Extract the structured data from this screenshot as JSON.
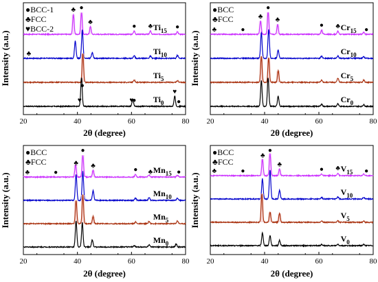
{
  "chart_data": [
    {
      "type": "line",
      "panel": "a",
      "ylabel": "Intensity (a.u.)",
      "xlabel": "2θ (degree)",
      "xlim": [
        20,
        80
      ],
      "xticks": [
        20,
        40,
        60,
        80
      ],
      "legend": [
        {
          "symbol": "●",
          "label": "BCC-1"
        },
        {
          "symbol": "♣",
          "label": "FCC"
        },
        {
          "symbol": "♥",
          "label": "BCC-2"
        }
      ],
      "series": [
        {
          "name": "Ti15",
          "base": "Ti",
          "sub": "15",
          "color": "#cc33ff",
          "peaks": [
            [
              38.5,
              0.9
            ],
            [
              41.5,
              1.0
            ],
            [
              44.8,
              0.35
            ],
            [
              61.0,
              0.15
            ],
            [
              67.0,
              0.15
            ],
            [
              77.0,
              0.12
            ]
          ],
          "markers": [
            [
              38.5,
              "♣"
            ],
            [
              41.5,
              "●"
            ],
            [
              44.8,
              "♣"
            ],
            [
              61.0,
              "●"
            ],
            [
              67.0,
              "♣"
            ],
            [
              77.0,
              "●"
            ]
          ]
        },
        {
          "name": "Ti10",
          "base": "Ti",
          "sub": "10",
          "color": "#0000cc",
          "peaks": [
            [
              39.2,
              0.6
            ],
            [
              41.8,
              1.0
            ],
            [
              45.5,
              0.2
            ],
            [
              61.0,
              0.1
            ],
            [
              67.0,
              0.08
            ],
            [
              77.0,
              0.1
            ]
          ],
          "markers": [
            [
              22,
              "♣"
            ]
          ]
        },
        {
          "name": "Ti5",
          "base": "Ti",
          "sub": "5",
          "color": "#aa3311",
          "peaks": [
            [
              42.0,
              1.0
            ],
            [
              61.0,
              0.08
            ],
            [
              77.0,
              0.06
            ]
          ],
          "markers": []
        },
        {
          "name": "Ti0",
          "base": "Ti",
          "sub": "0",
          "color": "#000000",
          "peaks": [
            [
              41.5,
              1.0
            ],
            [
              60.5,
              0.25
            ],
            [
              76.0,
              0.35
            ]
          ],
          "markers": [
            [
              40.8,
              "♥"
            ],
            [
              41.8,
              "●"
            ],
            [
              60.0,
              "♥"
            ],
            [
              61.0,
              "●"
            ],
            [
              76.0,
              "♥"
            ],
            [
              77.5,
              "●"
            ]
          ]
        }
      ]
    },
    {
      "type": "line",
      "panel": "b",
      "ylabel": "Intensity (a.u.)",
      "xlabel": "2θ (degree)",
      "xlim": [
        20,
        80
      ],
      "xticks": [
        20,
        40,
        60,
        80
      ],
      "legend": [
        {
          "symbol": "●",
          "label": "BCC"
        },
        {
          "symbol": "♣",
          "label": "FCC"
        }
      ],
      "series": [
        {
          "name": "Cr15",
          "base": "Cr",
          "sub": "15",
          "color": "#cc33ff",
          "peaks": [
            [
              38.5,
              0.6
            ],
            [
              41.3,
              1.0
            ],
            [
              44.8,
              0.45
            ],
            [
              61.0,
              0.2
            ],
            [
              67.0,
              0.15
            ],
            [
              76.5,
              0.1
            ]
          ],
          "markers": [
            [
              21.5,
              "♣"
            ],
            [
              32.0,
              "●"
            ],
            [
              38.5,
              "♣"
            ],
            [
              41.3,
              "●"
            ],
            [
              44.8,
              "♣"
            ],
            [
              61.0,
              "●"
            ],
            [
              67.0,
              "♣"
            ],
            [
              77.5,
              "●"
            ]
          ]
        },
        {
          "name": "Cr10",
          "base": "Cr",
          "sub": "10",
          "color": "#0000cc",
          "peaks": [
            [
              38.8,
              0.9
            ],
            [
              41.5,
              1.0
            ],
            [
              45.0,
              0.3
            ],
            [
              61.0,
              0.08
            ],
            [
              67.0,
              0.08
            ],
            [
              76.5,
              0.06
            ]
          ],
          "markers": []
        },
        {
          "name": "Cr5",
          "base": "Cr",
          "sub": "5",
          "color": "#aa3311",
          "peaks": [
            [
              38.8,
              0.9
            ],
            [
              41.5,
              0.85
            ],
            [
              45.0,
              0.4
            ],
            [
              61.0,
              0.08
            ],
            [
              67.0,
              0.15
            ],
            [
              76.5,
              0.08
            ]
          ],
          "markers": []
        },
        {
          "name": "Cr0",
          "base": "Cr",
          "sub": "0",
          "color": "#000000",
          "peaks": [
            [
              38.8,
              0.9
            ],
            [
              41.3,
              1.0
            ],
            [
              45.0,
              0.35
            ],
            [
              61.0,
              0.08
            ],
            [
              67.0,
              0.1
            ],
            [
              76.5,
              0.06
            ]
          ],
          "markers": []
        }
      ]
    },
    {
      "type": "line",
      "panel": "c",
      "ylabel": "Intensity (a.u.)",
      "xlabel": "2θ (degree)",
      "xlim": [
        20,
        80
      ],
      "xticks": [
        20,
        40,
        60,
        80
      ],
      "legend": [
        {
          "symbol": "●",
          "label": "BCC"
        },
        {
          "symbol": "♣",
          "label": "FCC"
        }
      ],
      "series": [
        {
          "name": "Mn15",
          "base": "Mn",
          "sub": "15",
          "color": "#cc33ff",
          "peaks": [
            [
              39.3,
              0.55
            ],
            [
              42.0,
              1.0
            ],
            [
              45.8,
              0.3
            ],
            [
              61.5,
              0.12
            ],
            [
              66.5,
              0.1
            ],
            [
              77.0,
              0.08
            ]
          ],
          "markers": [
            [
              21.5,
              "♣"
            ],
            [
              32.0,
              "●"
            ],
            [
              39.5,
              "♣"
            ],
            [
              42.0,
              "●"
            ],
            [
              45.8,
              "♣"
            ],
            [
              61.5,
              "●"
            ],
            [
              67.0,
              "♣"
            ],
            [
              77.5,
              "●"
            ]
          ]
        },
        {
          "name": "Mn10",
          "base": "Mn",
          "sub": "10",
          "color": "#0000cc",
          "peaks": [
            [
              39.5,
              0.9
            ],
            [
              42.0,
              1.0
            ],
            [
              45.8,
              0.35
            ],
            [
              61.5,
              0.08
            ],
            [
              66.5,
              0.1
            ],
            [
              77.0,
              0.08
            ]
          ],
          "markers": []
        },
        {
          "name": "Mn5",
          "base": "Mn",
          "sub": "5",
          "color": "#aa3311",
          "peaks": [
            [
              39.5,
              0.8
            ],
            [
              42.0,
              1.0
            ],
            [
              45.8,
              0.25
            ],
            [
              61.5,
              0.06
            ],
            [
              66.5,
              0.08
            ],
            [
              77.0,
              0.1
            ]
          ],
          "markers": []
        },
        {
          "name": "Mn0",
          "base": "Mn",
          "sub": "0",
          "color": "#000000",
          "peaks": [
            [
              39.5,
              0.9
            ],
            [
              41.8,
              0.85
            ],
            [
              45.5,
              0.25
            ],
            [
              61.0,
              0.05
            ],
            [
              66.5,
              0.08
            ],
            [
              76.5,
              0.1
            ]
          ],
          "markers": []
        }
      ]
    },
    {
      "type": "line",
      "panel": "d",
      "ylabel": "Intensity (a.u.)",
      "xlabel": "2θ (degree)",
      "xlim": [
        20,
        80
      ],
      "xticks": [
        20,
        40,
        60,
        80
      ],
      "legend": [
        {
          "symbol": "●",
          "label": "BCC"
        },
        {
          "symbol": "♣",
          "label": "FCC"
        }
      ],
      "series": [
        {
          "name": "V15",
          "base": "V",
          "sub": "15",
          "color": "#cc33ff",
          "peaks": [
            [
              39.2,
              0.75
            ],
            [
              42.0,
              1.0
            ],
            [
              45.5,
              0.3
            ],
            [
              61.0,
              0.08
            ],
            [
              67.0,
              0.12
            ],
            [
              76.5,
              0.08
            ]
          ],
          "markers": [
            [
              21.5,
              "♣"
            ],
            [
              32.0,
              "●"
            ],
            [
              39.3,
              "♣"
            ],
            [
              42.0,
              "●"
            ],
            [
              45.5,
              "♣"
            ],
            [
              61.0,
              "●"
            ],
            [
              67.0,
              "♣"
            ],
            [
              77.5,
              "●"
            ]
          ]
        },
        {
          "name": "V10",
          "base": "V",
          "sub": "10",
          "color": "#0000cc",
          "peaks": [
            [
              39.2,
              0.7
            ],
            [
              42.0,
              1.0
            ],
            [
              45.5,
              0.3
            ],
            [
              61.0,
              0.06
            ],
            [
              67.0,
              0.08
            ],
            [
              76.5,
              0.06
            ]
          ],
          "markers": []
        },
        {
          "name": "V5",
          "base": "V",
          "sub": "5",
          "color": "#aa3311",
          "peaks": [
            [
              39.0,
              1.0
            ],
            [
              42.0,
              0.35
            ],
            [
              45.5,
              0.3
            ],
            [
              61.0,
              0.04
            ],
            [
              67.0,
              0.05
            ],
            [
              76.5,
              0.04
            ]
          ],
          "markers": []
        },
        {
          "name": "V0",
          "base": "V",
          "sub": "0",
          "color": "#000000",
          "peaks": [
            [
              39.2,
              0.45
            ],
            [
              42.0,
              0.35
            ],
            [
              45.5,
              0.18
            ],
            [
              61.0,
              0.04
            ],
            [
              67.0,
              0.05
            ],
            [
              76.5,
              0.04
            ]
          ],
          "markers": []
        }
      ]
    }
  ]
}
